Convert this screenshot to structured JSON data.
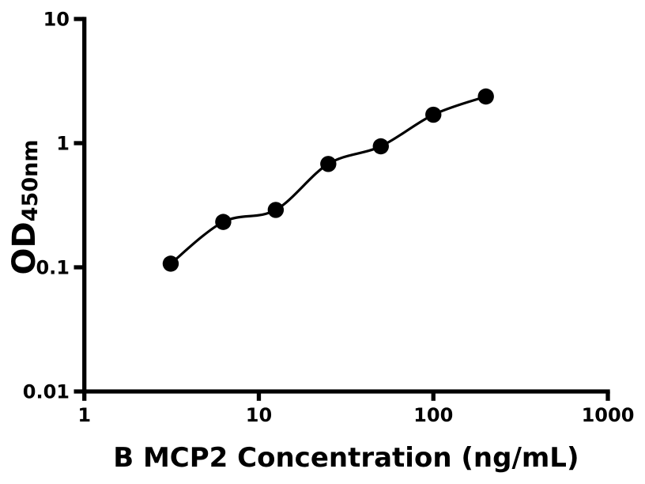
{
  "chart_data": {
    "type": "scatter",
    "title": "",
    "xlabel": "B MCP2 Concentration (ng/mL)",
    "ylabel_main": "OD",
    "ylabel_subscript": "450nm",
    "x_scale": "log",
    "y_scale": "log",
    "xlim": [
      1,
      1000
    ],
    "ylim": [
      0.01,
      10
    ],
    "x_ticks": {
      "values": [
        1,
        10,
        100,
        1000
      ],
      "labels": [
        "1",
        "10",
        "100",
        "1000"
      ]
    },
    "y_ticks": {
      "values": [
        10,
        1,
        0.1,
        0.01
      ],
      "labels": [
        "10",
        "1",
        "0.1",
        "0.01"
      ]
    },
    "series": [
      {
        "name": "standard-curve",
        "marker": "circle",
        "x": [
          3.125,
          6.25,
          12.5,
          25,
          50,
          100,
          200
        ],
        "y": [
          0.107,
          0.232,
          0.29,
          0.68,
          0.943,
          1.695,
          2.376
        ]
      }
    ],
    "fit_line_through_points": true,
    "grid": false,
    "legend": false,
    "colors": {
      "marker": "#000000",
      "line": "#000000",
      "axis": "#000000",
      "text": "#000000",
      "background": "#ffffff"
    }
  }
}
